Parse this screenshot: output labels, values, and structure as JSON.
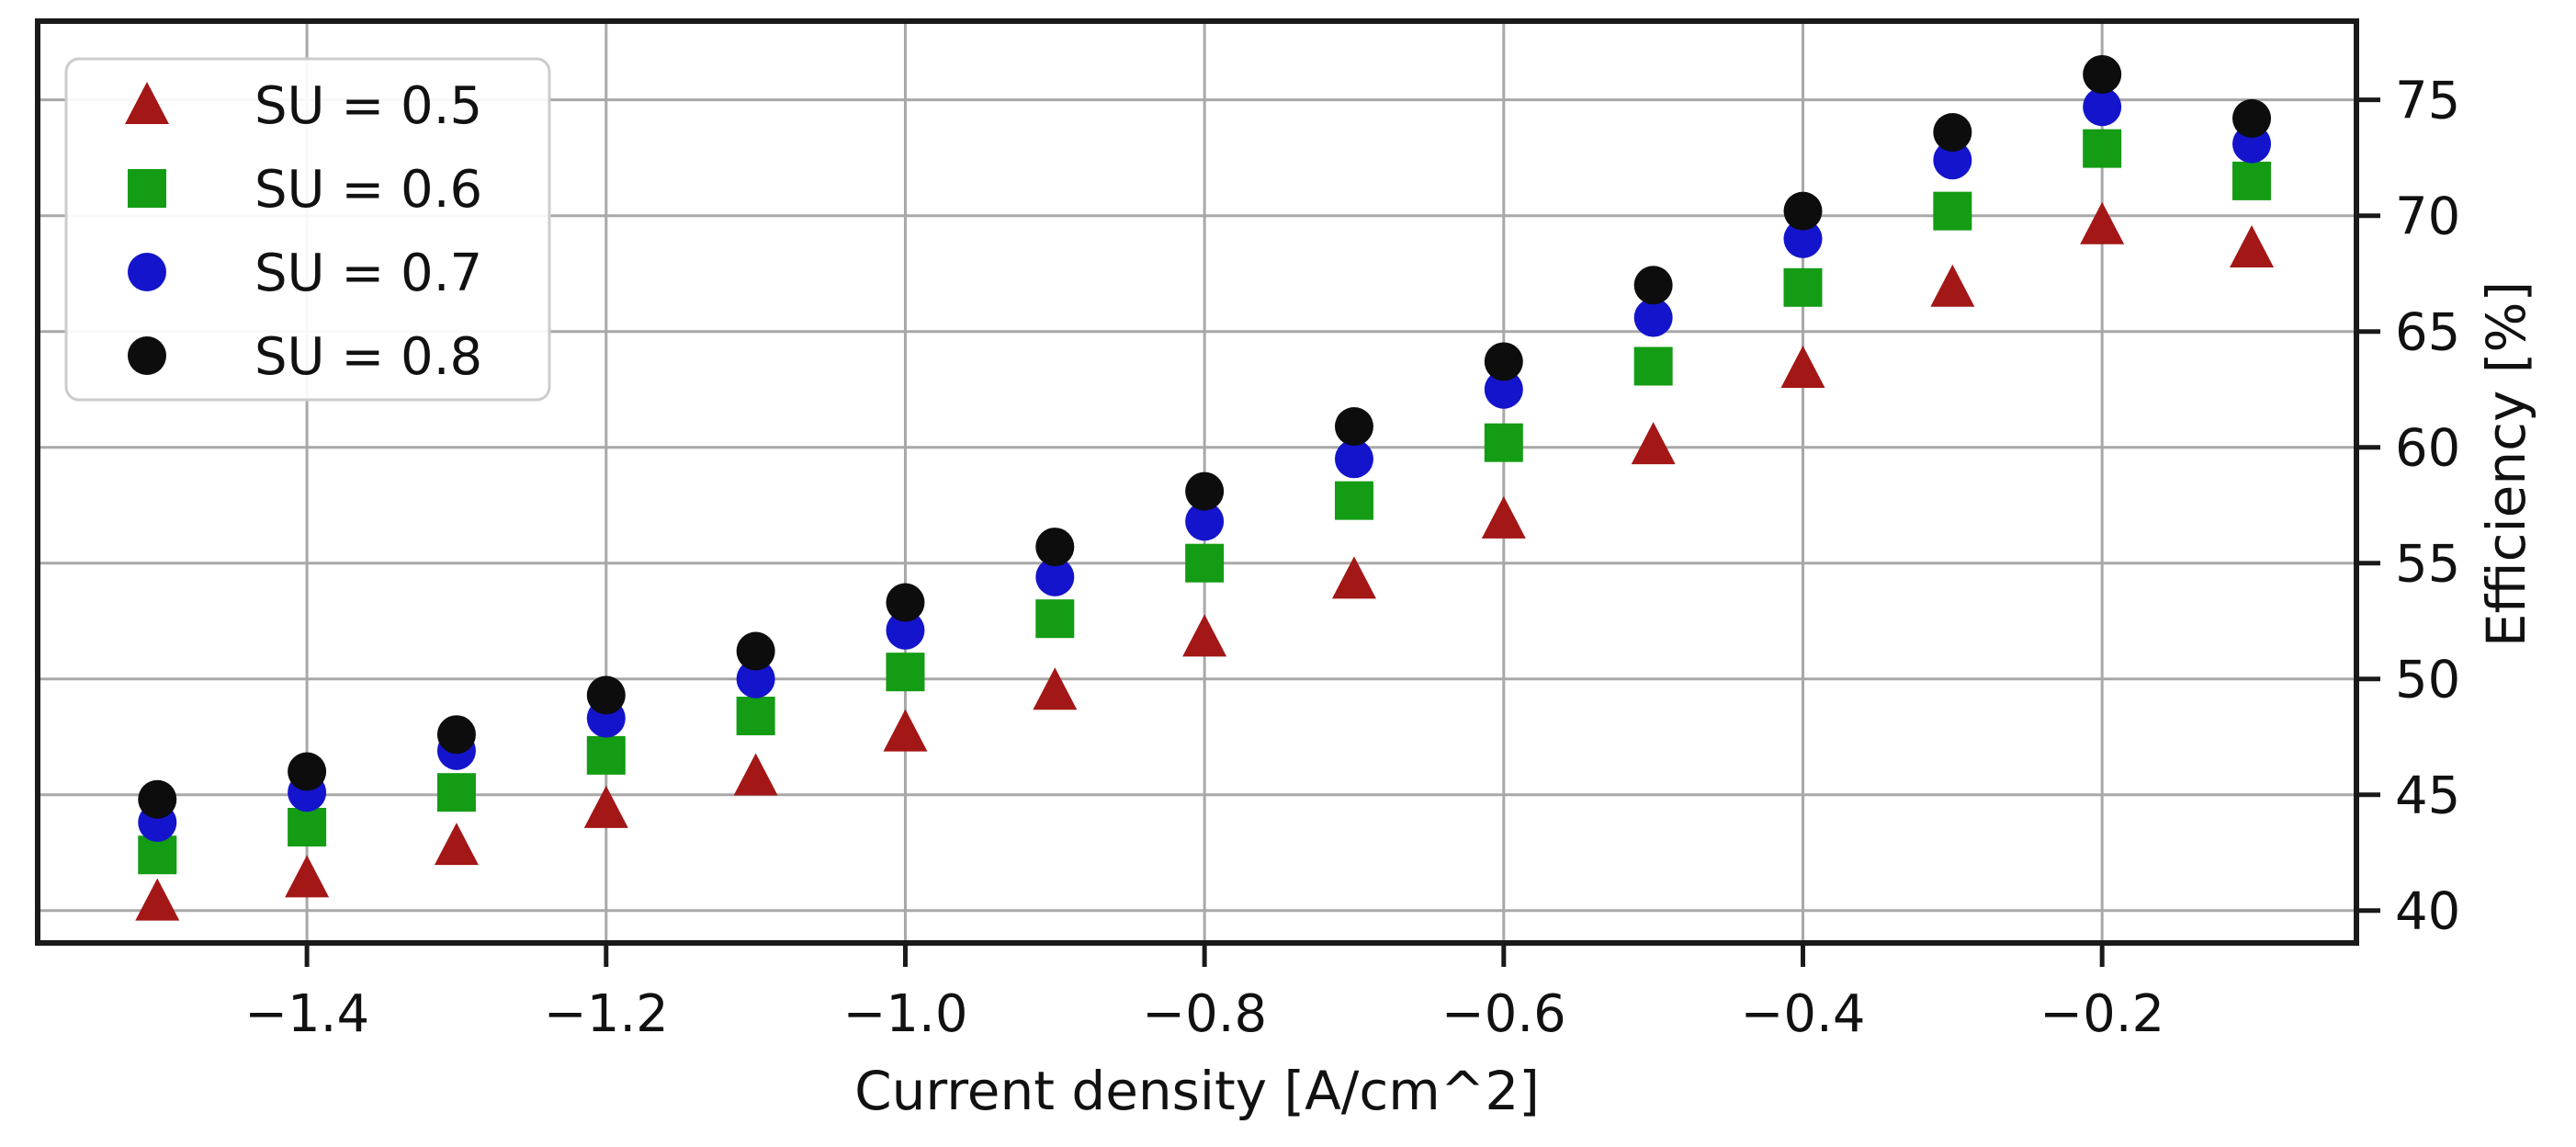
{
  "chart_data": {
    "type": "scatter",
    "title": "",
    "xlabel": "Current density [A/cm^2]",
    "ylabel": "Efficiency [%]",
    "xlim": [
      -1.58,
      -0.03
    ],
    "ylim": [
      38.6,
      78.4
    ],
    "x_ticks": [
      -1.4,
      -1.2,
      -1.0,
      -0.8,
      -0.6,
      -0.4,
      -0.2
    ],
    "y_ticks": [
      40,
      45,
      50,
      55,
      60,
      65,
      70,
      75
    ],
    "grid": true,
    "grid_color": "#a8a8a8",
    "spine_color": "#1a1a1a",
    "legend_position": "upper left",
    "x": [
      -1.5,
      -1.4,
      -1.3,
      -1.2,
      -1.1,
      -1.0,
      -0.9,
      -0.8,
      -0.7,
      -0.6,
      -0.5,
      -0.4,
      -0.3,
      -0.2,
      -0.1
    ],
    "series": [
      {
        "name": "SU = 0.5",
        "marker": "triangle",
        "color": "#a31717",
        "values": [
          40.4,
          41.4,
          42.8,
          44.4,
          45.8,
          47.7,
          49.5,
          51.8,
          54.3,
          56.9,
          60.1,
          63.4,
          66.9,
          69.6,
          68.6
        ]
      },
      {
        "name": "SU = 0.6",
        "marker": "square",
        "color": "#149c14",
        "values": [
          42.4,
          43.6,
          45.1,
          46.7,
          48.4,
          50.3,
          52.6,
          55.0,
          57.7,
          60.2,
          63.5,
          66.9,
          70.2,
          72.9,
          71.5
        ]
      },
      {
        "name": "SU = 0.7",
        "marker": "circle",
        "color": "#1414cc",
        "values": [
          43.8,
          45.1,
          46.9,
          48.3,
          50.0,
          52.1,
          54.4,
          56.8,
          59.5,
          62.5,
          65.6,
          69.0,
          72.4,
          74.7,
          73.1
        ]
      },
      {
        "name": "SU = 0.8",
        "marker": "circle",
        "color": "#0d0d0d",
        "values": [
          44.8,
          46.0,
          47.6,
          49.3,
          51.2,
          53.3,
          55.7,
          58.1,
          60.9,
          63.7,
          67.0,
          70.2,
          73.6,
          76.1,
          74.2
        ]
      }
    ],
    "legend": {
      "entries": [
        "SU = 0.5",
        "SU = 0.6",
        "SU = 0.7",
        "SU = 0.8"
      ],
      "border_color": "#cccccc",
      "background": "#ffffff"
    }
  }
}
